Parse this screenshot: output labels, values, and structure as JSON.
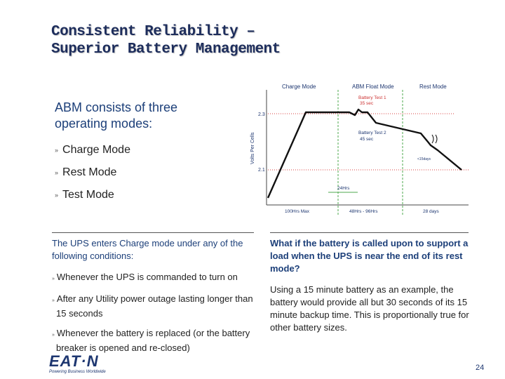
{
  "title": {
    "line1": "Consistent Reliability –",
    "line2": "Superior Battery Management"
  },
  "intro": {
    "line1": "ABM consists of three",
    "line2": "operating modes:"
  },
  "modes": [
    "Charge Mode",
    "Rest Mode",
    "Test Mode"
  ],
  "left": {
    "heading": "The UPS enters Charge mode under any of the following conditions:",
    "conditions": [
      "Whenever the UPS is commanded to turn on",
      "After any Utility power outage lasting longer than 15 seconds",
      "Whenever the battery is replaced (or the battery breaker is opened and re-closed)"
    ]
  },
  "right": {
    "question": "What if the battery is called upon to support a load when the UPS is near the end of its rest mode?",
    "answer": "Using a 15 minute battery as an example, the battery would provide all but 30 seconds of its 15 minute backup time. This is proportionally true for other battery sizes."
  },
  "chart": {
    "phases": [
      "Charge Mode",
      "ABM Float Mode",
      "Rest Mode"
    ],
    "ylabel": "Volts Per Cells",
    "ytick_high": "2.3",
    "ytick_low": "2.1",
    "test1": [
      "Battery Test 1",
      "35 sec"
    ],
    "test2": [
      "Battery Test 2",
      "45 sec"
    ],
    "note": "<15days",
    "mid_duration": "24Hrs",
    "bottom_labels": [
      "100Hrs Max",
      "48Hrs - 96Hrs",
      "28 days"
    ],
    "colors": {
      "line": "#111111",
      "dotted_red": "#d84040",
      "green": "#4caa4c",
      "label": "#1d3670"
    }
  },
  "footer": {
    "logo": "EAT·N",
    "tagline": "Powering Business Worldwide",
    "page": "24"
  },
  "brand_color": "#1d3670"
}
